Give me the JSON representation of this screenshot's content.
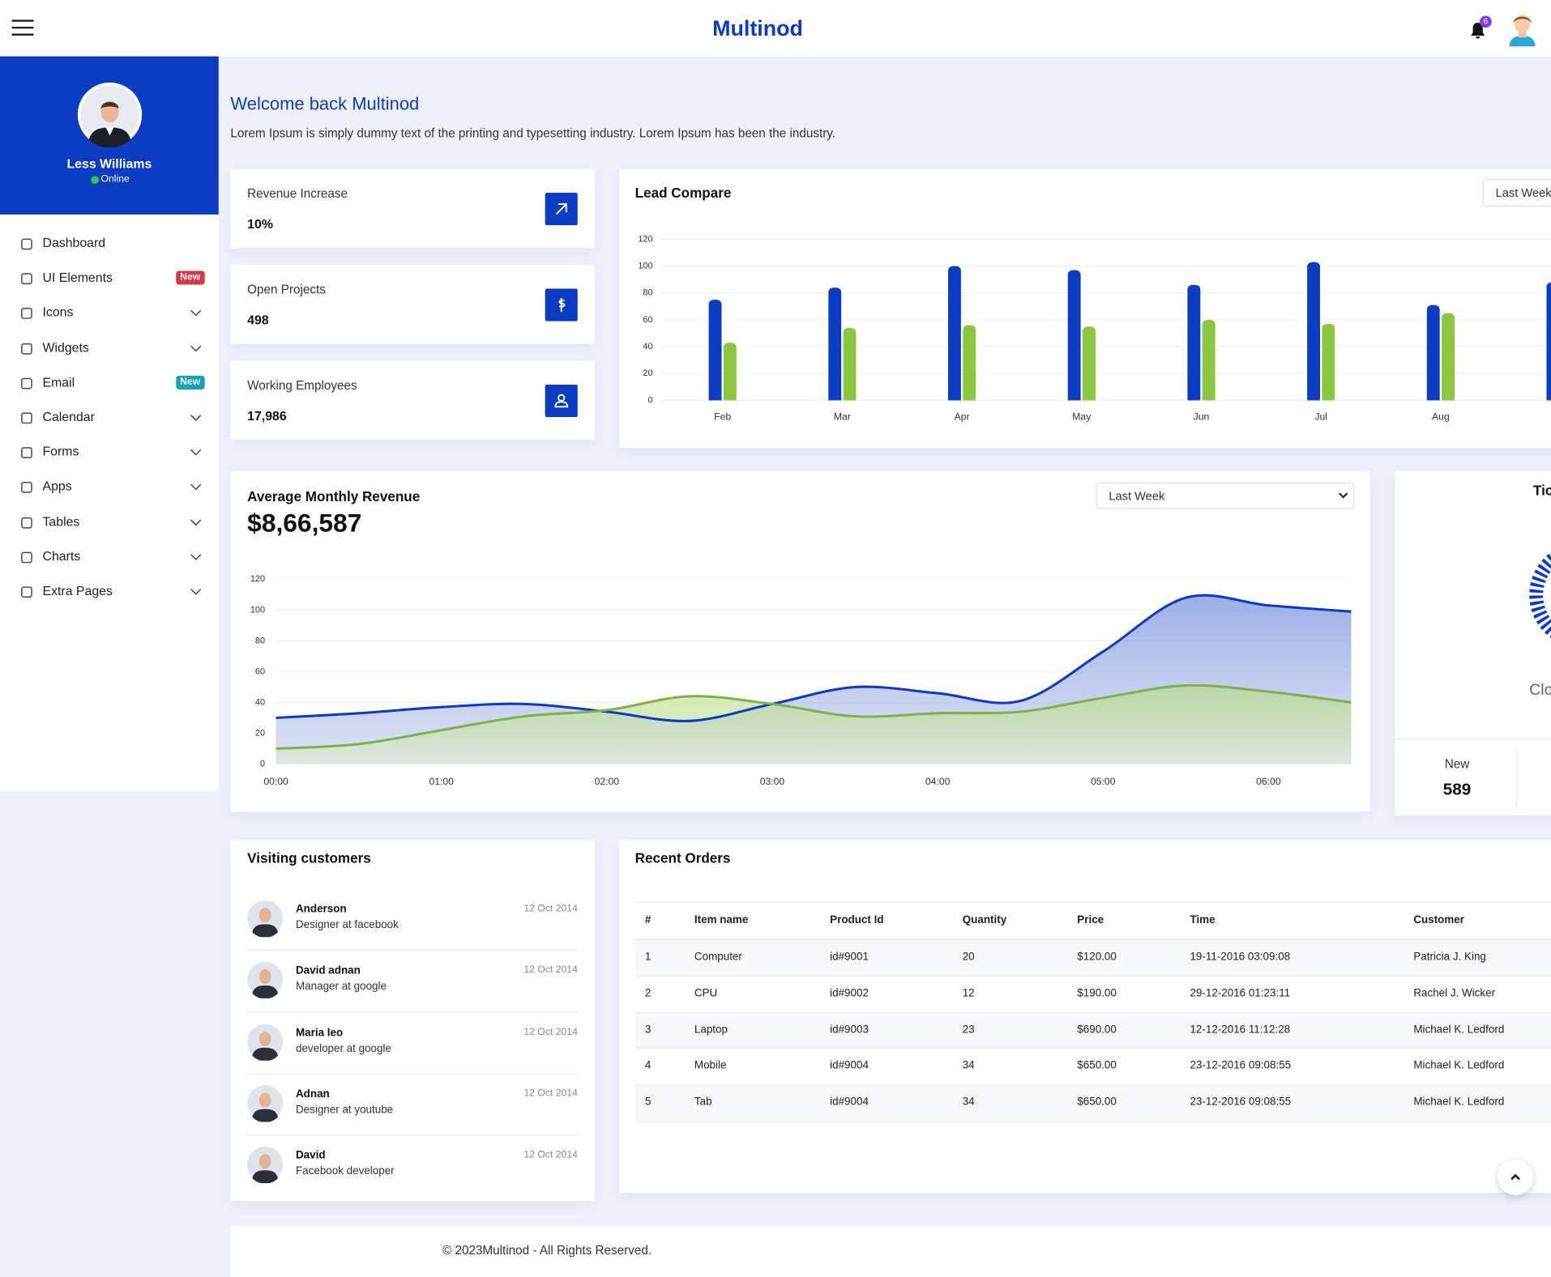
{
  "header": {
    "brand": "Multinod",
    "notification_count": "6"
  },
  "profile": {
    "name": "Less Williams",
    "status": "Online"
  },
  "menu": [
    {
      "label": "Dashboard",
      "submenu": false
    },
    {
      "label": "UI Elements",
      "badge": "New",
      "badge_color": "#dc3545",
      "submenu": false
    },
    {
      "label": "Icons",
      "submenu": true
    },
    {
      "label": "Widgets",
      "submenu": true
    },
    {
      "label": "Email",
      "badge": "New",
      "badge_color": "#17a2b8",
      "submenu": false
    },
    {
      "label": "Calendar",
      "submenu": true
    },
    {
      "label": "Forms",
      "submenu": true
    },
    {
      "label": "Apps",
      "submenu": true
    },
    {
      "label": "Tables",
      "submenu": true
    },
    {
      "label": "Charts",
      "submenu": true
    },
    {
      "label": "Extra Pages",
      "submenu": true
    }
  ],
  "welcome": {
    "title": "Welcome back Multinod",
    "text": "Lorem Ipsum is simply dummy text of the printing and typesetting industry. Lorem Ipsum has been the industry."
  },
  "stats": [
    {
      "label": "Revenue Increase",
      "value": "10%"
    },
    {
      "label": "Open Projects",
      "value": "498"
    },
    {
      "label": "Working Employees",
      "value": "17,986"
    }
  ],
  "chart_data": [
    {
      "type": "bar",
      "title": "Lead Compare",
      "control": "Last Week",
      "categories": [
        "Feb",
        "Mar",
        "Apr",
        "May",
        "Jun",
        "Jul",
        "Aug",
        null
      ],
      "series": [
        {
          "color": "#0b3cc1",
          "values": [
            75,
            84,
            100,
            97,
            86,
            103,
            71,
            88
          ]
        },
        {
          "color": "#8dc63f",
          "values": [
            43,
            54,
            56,
            55,
            60,
            57,
            65,
            null
          ]
        }
      ],
      "ylim": [
        0,
        120
      ],
      "yticks": [
        0,
        20,
        40,
        60,
        80,
        100,
        120
      ],
      "grid": true
    },
    {
      "type": "area",
      "title": "Average Monthly Revenue",
      "subtitle": "$8,66,587",
      "control": "Last Week",
      "categories": [
        "00:00",
        null,
        "01:00",
        null,
        "02:00",
        null,
        "03:00",
        null,
        "04:00",
        null,
        "05:00",
        null,
        "06:00",
        null
      ],
      "series": [
        {
          "color": "#0b3cc1",
          "values": [
            30,
            33,
            37,
            39,
            34,
            28,
            39,
            50,
            46,
            41,
            73,
            108,
            103,
            99
          ]
        },
        {
          "color": "#7fb24a",
          "values": [
            10,
            13,
            22,
            31,
            35,
            44,
            39,
            31,
            33,
            34,
            43,
            51,
            47,
            40
          ]
        }
      ],
      "ylim": [
        0,
        120
      ],
      "yticks": [
        0,
        20,
        40,
        60,
        80,
        100,
        120
      ],
      "grid": true
    }
  ],
  "tickets": {
    "title": "Tic",
    "label": "Clo",
    "stats": [
      {
        "label": "New",
        "value": "589"
      }
    ]
  },
  "customers": {
    "title": "Visiting customers",
    "items": [
      {
        "name": "Anderson",
        "role": "Designer at facebook",
        "date": "12 Oct 2014"
      },
      {
        "name": "David adnan",
        "role": "Manager at google",
        "date": "12 Oct 2014"
      },
      {
        "name": "Maria leo",
        "role": "developer at google",
        "date": "12 Oct 2014"
      },
      {
        "name": "Adnan",
        "role": "Designer at youtube",
        "date": "12 Oct 2014"
      },
      {
        "name": "David",
        "role": "Facebook developer",
        "date": "12 Oct 2014"
      }
    ]
  },
  "orders": {
    "title": "Recent Orders",
    "columns": [
      "#",
      "Item name",
      "Product Id",
      "Quantity",
      "Price",
      "Time",
      "Customer"
    ],
    "rows": [
      [
        "1",
        "Computer",
        "id#9001",
        "20",
        "$120.00",
        "19-11-2016 03:09:08",
        "Patricia J. King"
      ],
      [
        "2",
        "CPU",
        "id#9002",
        "12",
        "$190.00",
        "29-12-2016 01:23:11",
        "Rachel J. Wicker"
      ],
      [
        "3",
        "Laptop",
        "id#9003",
        "23",
        "$690.00",
        "12-12-2016 11:12:28",
        "Michael K. Ledford"
      ],
      [
        "4",
        "Mobile",
        "id#9004",
        "34",
        "$650.00",
        "23-12-2016 09:08:55",
        "Michael K. Ledford"
      ],
      [
        "5",
        "Tab",
        "id#9004",
        "34",
        "$650.00",
        "23-12-2016 09:08:55",
        "Michael K. Ledford"
      ]
    ]
  },
  "footer": {
    "text": "© 2023Multinod - All Rights Reserved."
  }
}
